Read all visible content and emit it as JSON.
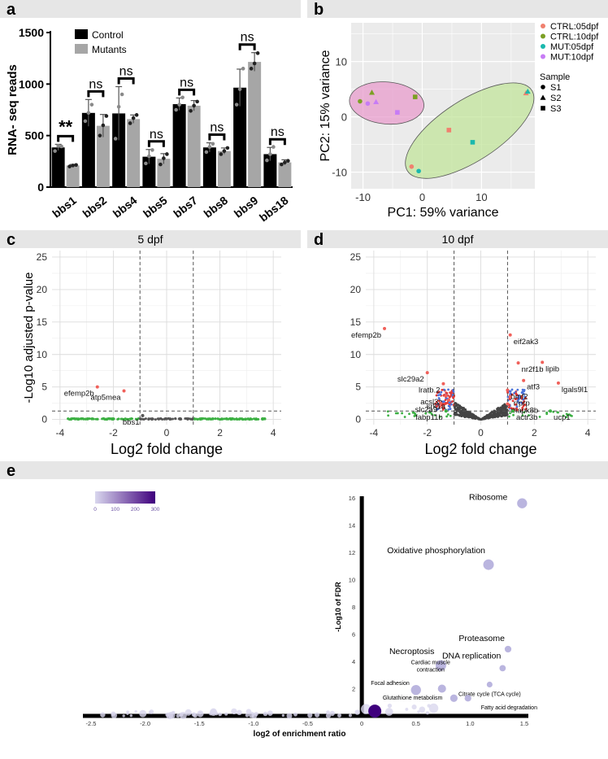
{
  "chart_data": [
    {
      "panel": "a",
      "type": "bar",
      "ylabel": "RNA- seq reads",
      "ylim": [
        0,
        1500
      ],
      "yticks": [
        0,
        500,
        1000,
        1500
      ],
      "categories": [
        "bbs1",
        "bbs2",
        "bbs4",
        "bbs5",
        "bbs7",
        "bbs8",
        "bbs9",
        "bbs18"
      ],
      "series": [
        {
          "name": "Control",
          "color": "#000000",
          "values": [
            385,
            720,
            715,
            295,
            805,
            385,
            965,
            320
          ],
          "errors": [
            30,
            130,
            260,
            70,
            60,
            45,
            180,
            65
          ],
          "points": [
            [
              350,
              400,
              395
            ],
            [
              640,
              720,
              800
            ],
            [
              470,
              780,
              900
            ],
            [
              230,
              300,
              360
            ],
            [
              750,
              800,
              870
            ],
            [
              340,
              390,
              420
            ],
            [
              800,
              950,
              1150
            ],
            [
              260,
              320,
              390
            ]
          ]
        },
        {
          "name": "Mutants",
          "color": "#a6a6a6",
          "values": [
            210,
            595,
            660,
            275,
            790,
            350,
            1215,
            240
          ],
          "errors": [
            10,
            110,
            40,
            50,
            50,
            30,
            90,
            25
          ],
          "points": [
            [
              200,
              210,
              215
            ],
            [
              500,
              600,
              690
            ],
            [
              620,
              670,
              700
            ],
            [
              220,
              280,
              320
            ],
            [
              740,
              790,
              830
            ],
            [
              320,
              350,
              380
            ],
            [
              1150,
              1200,
              1300
            ],
            [
              220,
              240,
              255
            ]
          ]
        }
      ],
      "significance": [
        "**",
        "ns",
        "ns",
        "ns",
        "ns",
        "ns",
        "ns",
        "ns"
      ],
      "legend": {
        "placement": "top-left",
        "entries": [
          "Control",
          "Mutants"
        ]
      }
    },
    {
      "panel": "b",
      "type": "scatter",
      "xlabel": "PC1: 59% variance",
      "ylabel": "PC2: 15% variance",
      "xlim": [
        -12,
        19
      ],
      "ylim": [
        -13,
        17
      ],
      "xticks": [
        -10,
        0,
        10
      ],
      "yticks": [
        -10,
        0,
        10
      ],
      "groups": [
        {
          "name": "CTRL:05dpf",
          "color": "#f0806e"
        },
        {
          "name": "CTRL:10dpf",
          "color": "#7ca024"
        },
        {
          "name": "MUT:05dpf",
          "color": "#1ab8ad"
        },
        {
          "name": "MUT:10dpf",
          "color": "#c77cf5"
        }
      ],
      "legend_title_shape": "Sample",
      "shapes": [
        "S1",
        "S2",
        "S3"
      ],
      "points": [
        {
          "x": -10.5,
          "y": 2.8,
          "group": "CTRL:10dpf",
          "shape": "S1"
        },
        {
          "x": -8.5,
          "y": 4.4,
          "group": "CTRL:10dpf",
          "shape": "S2"
        },
        {
          "x": -1.2,
          "y": 3.6,
          "group": "CTRL:10dpf",
          "shape": "S3"
        },
        {
          "x": -9.2,
          "y": 2.4,
          "group": "MUT:10dpf",
          "shape": "S1"
        },
        {
          "x": -7.8,
          "y": 2.7,
          "group": "MUT:10dpf",
          "shape": "S2"
        },
        {
          "x": -4.2,
          "y": 0.8,
          "group": "MUT:10dpf",
          "shape": "S3"
        },
        {
          "x": -1.8,
          "y": -9.0,
          "group": "CTRL:05dpf",
          "shape": "S1"
        },
        {
          "x": 17.5,
          "y": 4.3,
          "group": "CTRL:05dpf",
          "shape": "S2"
        },
        {
          "x": 4.5,
          "y": -2.4,
          "group": "CTRL:05dpf",
          "shape": "S3"
        },
        {
          "x": -0.6,
          "y": -9.8,
          "group": "MUT:05dpf",
          "shape": "S1"
        },
        {
          "x": 17.8,
          "y": 4.6,
          "group": "MUT:05dpf",
          "shape": "S2"
        },
        {
          "x": 8.5,
          "y": -4.6,
          "group": "MUT:05dpf",
          "shape": "S3"
        }
      ],
      "ellipses": [
        {
          "group": "10dpf",
          "color": "#e89ccc",
          "cx": -6.0,
          "cy": 2.5,
          "rx": 6.3,
          "ry": 3.8,
          "angle": -5
        },
        {
          "group": "05dpf",
          "color": "#c2e49b",
          "cx": 8.0,
          "cy": -2.5,
          "rx": 12.5,
          "ry": 5.5,
          "angle": 33
        }
      ]
    },
    {
      "panel": "c",
      "type": "scatter",
      "title": "5 dpf",
      "xlabel": "Log2 fold change",
      "ylabel": "-Log10 adjusted p-value",
      "xlim": [
        -4.3,
        4.3
      ],
      "ylim": [
        -0.8,
        26
      ],
      "xticks": [
        -4,
        -2,
        0,
        2,
        4
      ],
      "yticks": [
        0,
        5,
        10,
        15,
        20,
        25
      ],
      "thresholds": {
        "fc": [
          -1,
          1
        ],
        "p": 1.3
      },
      "labeled_points": [
        {
          "label": "efemp2b",
          "x": -2.6,
          "y": 5.0,
          "color": "#f0605a"
        },
        {
          "label": "atp5mea",
          "x": -1.6,
          "y": 4.4,
          "color": "#f0605a"
        },
        {
          "label": "bbs1",
          "x": -0.9,
          "y": 0.6,
          "color": "#555555"
        }
      ]
    },
    {
      "panel": "d",
      "type": "scatter",
      "title": "10 dpf",
      "xlabel": "Log2 fold change",
      "ylabel": "",
      "xlim": [
        -4.3,
        4.3
      ],
      "ylim": [
        -0.8,
        26
      ],
      "xticks": [
        -4,
        -2,
        0,
        2,
        4
      ],
      "yticks": [
        0,
        5,
        10,
        15,
        20,
        25
      ],
      "thresholds": {
        "fc": [
          -1,
          1
        ],
        "p": 1.3
      },
      "labeled_points": [
        {
          "label": "efemp2b",
          "x": -3.6,
          "y": 14.0,
          "color": "#f0605a"
        },
        {
          "label": "eif2ak3",
          "x": 1.1,
          "y": 13.0,
          "color": "#f0605a"
        },
        {
          "label": "lipib",
          "x": 2.3,
          "y": 8.8,
          "color": "#f0605a"
        },
        {
          "label": "nr2f1b",
          "x": 1.4,
          "y": 8.7,
          "color": "#f0605a"
        },
        {
          "label": "slc29a2",
          "x": -2.0,
          "y": 7.2,
          "color": "#f0605a"
        },
        {
          "label": "atf3",
          "x": 1.6,
          "y": 6.0,
          "color": "#f0605a"
        },
        {
          "label": "lgals9l1",
          "x": 2.9,
          "y": 5.6,
          "color": "#f0605a"
        },
        {
          "label": "lratb.2",
          "x": -1.4,
          "y": 5.5,
          "color": "#f0605a"
        },
        {
          "label": "bmf2",
          "x": 1.0,
          "y": 4.5,
          "color": "#f0605a"
        },
        {
          "label": "acsl3a",
          "x": -1.3,
          "y": 3.7,
          "color": "#f0605a"
        },
        {
          "label": "rrprp",
          "x": 1.1,
          "y": 3.5,
          "color": "#f0605a"
        },
        {
          "label": "srk1a",
          "x": -1.2,
          "y": 3.0,
          "color": "#f0605a"
        },
        {
          "label": "slc2a9",
          "x": -1.5,
          "y": 2.5,
          "color": "#f0605a"
        },
        {
          "label": "mapk8b",
          "x": 1.0,
          "y": 2.4,
          "color": "#f0605a"
        },
        {
          "label": "fabp11b",
          "x": -1.3,
          "y": 1.3,
          "color": "#3cb043"
        },
        {
          "label": "actr3b",
          "x": 1.2,
          "y": 1.3,
          "color": "#3cb043"
        },
        {
          "label": "ucp1",
          "x": 2.6,
          "y": 1.3,
          "color": "#3cb043"
        }
      ]
    },
    {
      "panel": "e",
      "type": "scatter",
      "xlabel": "log2 of enrichment ratio",
      "ylabel": "-Log10 of FDR",
      "xlim": [
        -2.5,
        1.5
      ],
      "ylim": [
        0,
        16
      ],
      "xticks": [
        -2.5,
        -2.0,
        -1.5,
        -1.0,
        -0.5,
        0,
        0.5,
        1.0,
        1.5
      ],
      "yticks": [
        2,
        4,
        6,
        8,
        10,
        12,
        14,
        16
      ],
      "colorbar": {
        "min": 0,
        "max": 300,
        "ticks": [
          0,
          100,
          200,
          300
        ],
        "low_color": "#d9d7ee",
        "high_color": "#3f007d"
      },
      "labeled_points": [
        {
          "label": "Ribosome",
          "x": 1.48,
          "y": 15.6,
          "size": 90
        },
        {
          "label": "Oxidative phosphorylation",
          "x": 1.17,
          "y": 11.1,
          "size": 100
        },
        {
          "label": "Proteasome",
          "x": 1.35,
          "y": 4.9,
          "size": 40
        },
        {
          "label": "DNA replication",
          "x": 1.3,
          "y": 3.5,
          "size": 36
        },
        {
          "label": "Necroptosis",
          "x": 0.73,
          "y": 3.7,
          "size": 100
        },
        {
          "label": "Citrate cycle (TCA cycle)",
          "x": 1.18,
          "y": 2.3,
          "size": 30
        },
        {
          "label": "Cardiac muscle contraction",
          "x": 0.74,
          "y": 2.0,
          "size": 60
        },
        {
          "label": "Focal adhesion",
          "x": 0.5,
          "y": 1.9,
          "size": 90
        },
        {
          "label": "Glutathione metabolism",
          "x": 0.85,
          "y": 1.3,
          "size": 50
        },
        {
          "label": "Fatty acid degradation",
          "x": 0.98,
          "y": 1.3,
          "size": 40
        }
      ]
    }
  ],
  "panel_letters": [
    "a",
    "b",
    "c",
    "d",
    "e"
  ]
}
